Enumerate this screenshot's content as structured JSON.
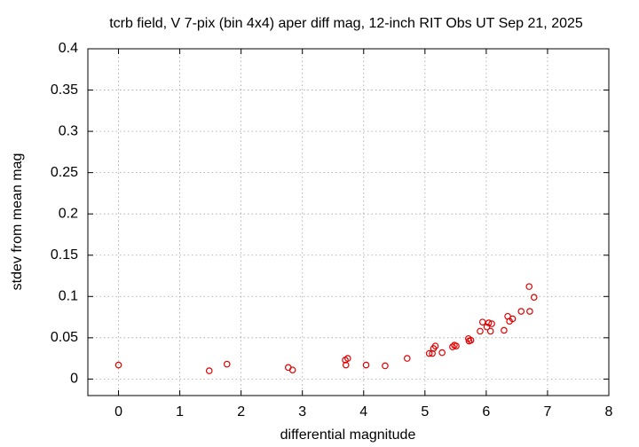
{
  "chart_data": {
    "type": "scatter",
    "title": "tcrb field, V 7-pix (bin 4x4) aper diff mag,  12-inch RIT Obs UT Sep 21, 2025",
    "x_label": "differential magnitude",
    "y_label": "stdev from mean mag",
    "xlim": [
      -0.5,
      8
    ],
    "ylim": [
      -0.02,
      0.4
    ],
    "xticks": [
      0,
      1,
      2,
      3,
      4,
      5,
      6,
      7,
      8
    ],
    "yticks": [
      0,
      0.05,
      0.1,
      0.15,
      0.2,
      0.25,
      0.3,
      0.35,
      0.4
    ],
    "grid": true,
    "series": [
      {
        "color": "#e00000",
        "x": [
          0,
          1.48,
          1.77,
          2.77,
          2.84,
          3.7,
          3.71,
          3.74,
          4.04,
          4.35,
          4.71,
          5.07,
          5.12,
          5.14,
          5.17,
          5.28,
          5.45,
          5.48,
          5.51,
          5.71,
          5.72,
          5.75,
          5.9,
          5.94,
          6.01,
          6.04,
          6.07,
          6.09,
          6.29,
          6.35,
          6.38,
          6.43,
          6.57,
          6.7,
          6.71,
          6.78
        ],
        "values": [
          0.017,
          0.01,
          0.018,
          0.014,
          0.011,
          0.023,
          0.017,
          0.025,
          0.017,
          0.016,
          0.025,
          0.031,
          0.031,
          0.037,
          0.04,
          0.032,
          0.039,
          0.041,
          0.04,
          0.049,
          0.046,
          0.047,
          0.058,
          0.069,
          0.063,
          0.068,
          0.058,
          0.067,
          0.059,
          0.076,
          0.07,
          0.073,
          0.082,
          0.112,
          0.082,
          0.099
        ]
      }
    ]
  }
}
